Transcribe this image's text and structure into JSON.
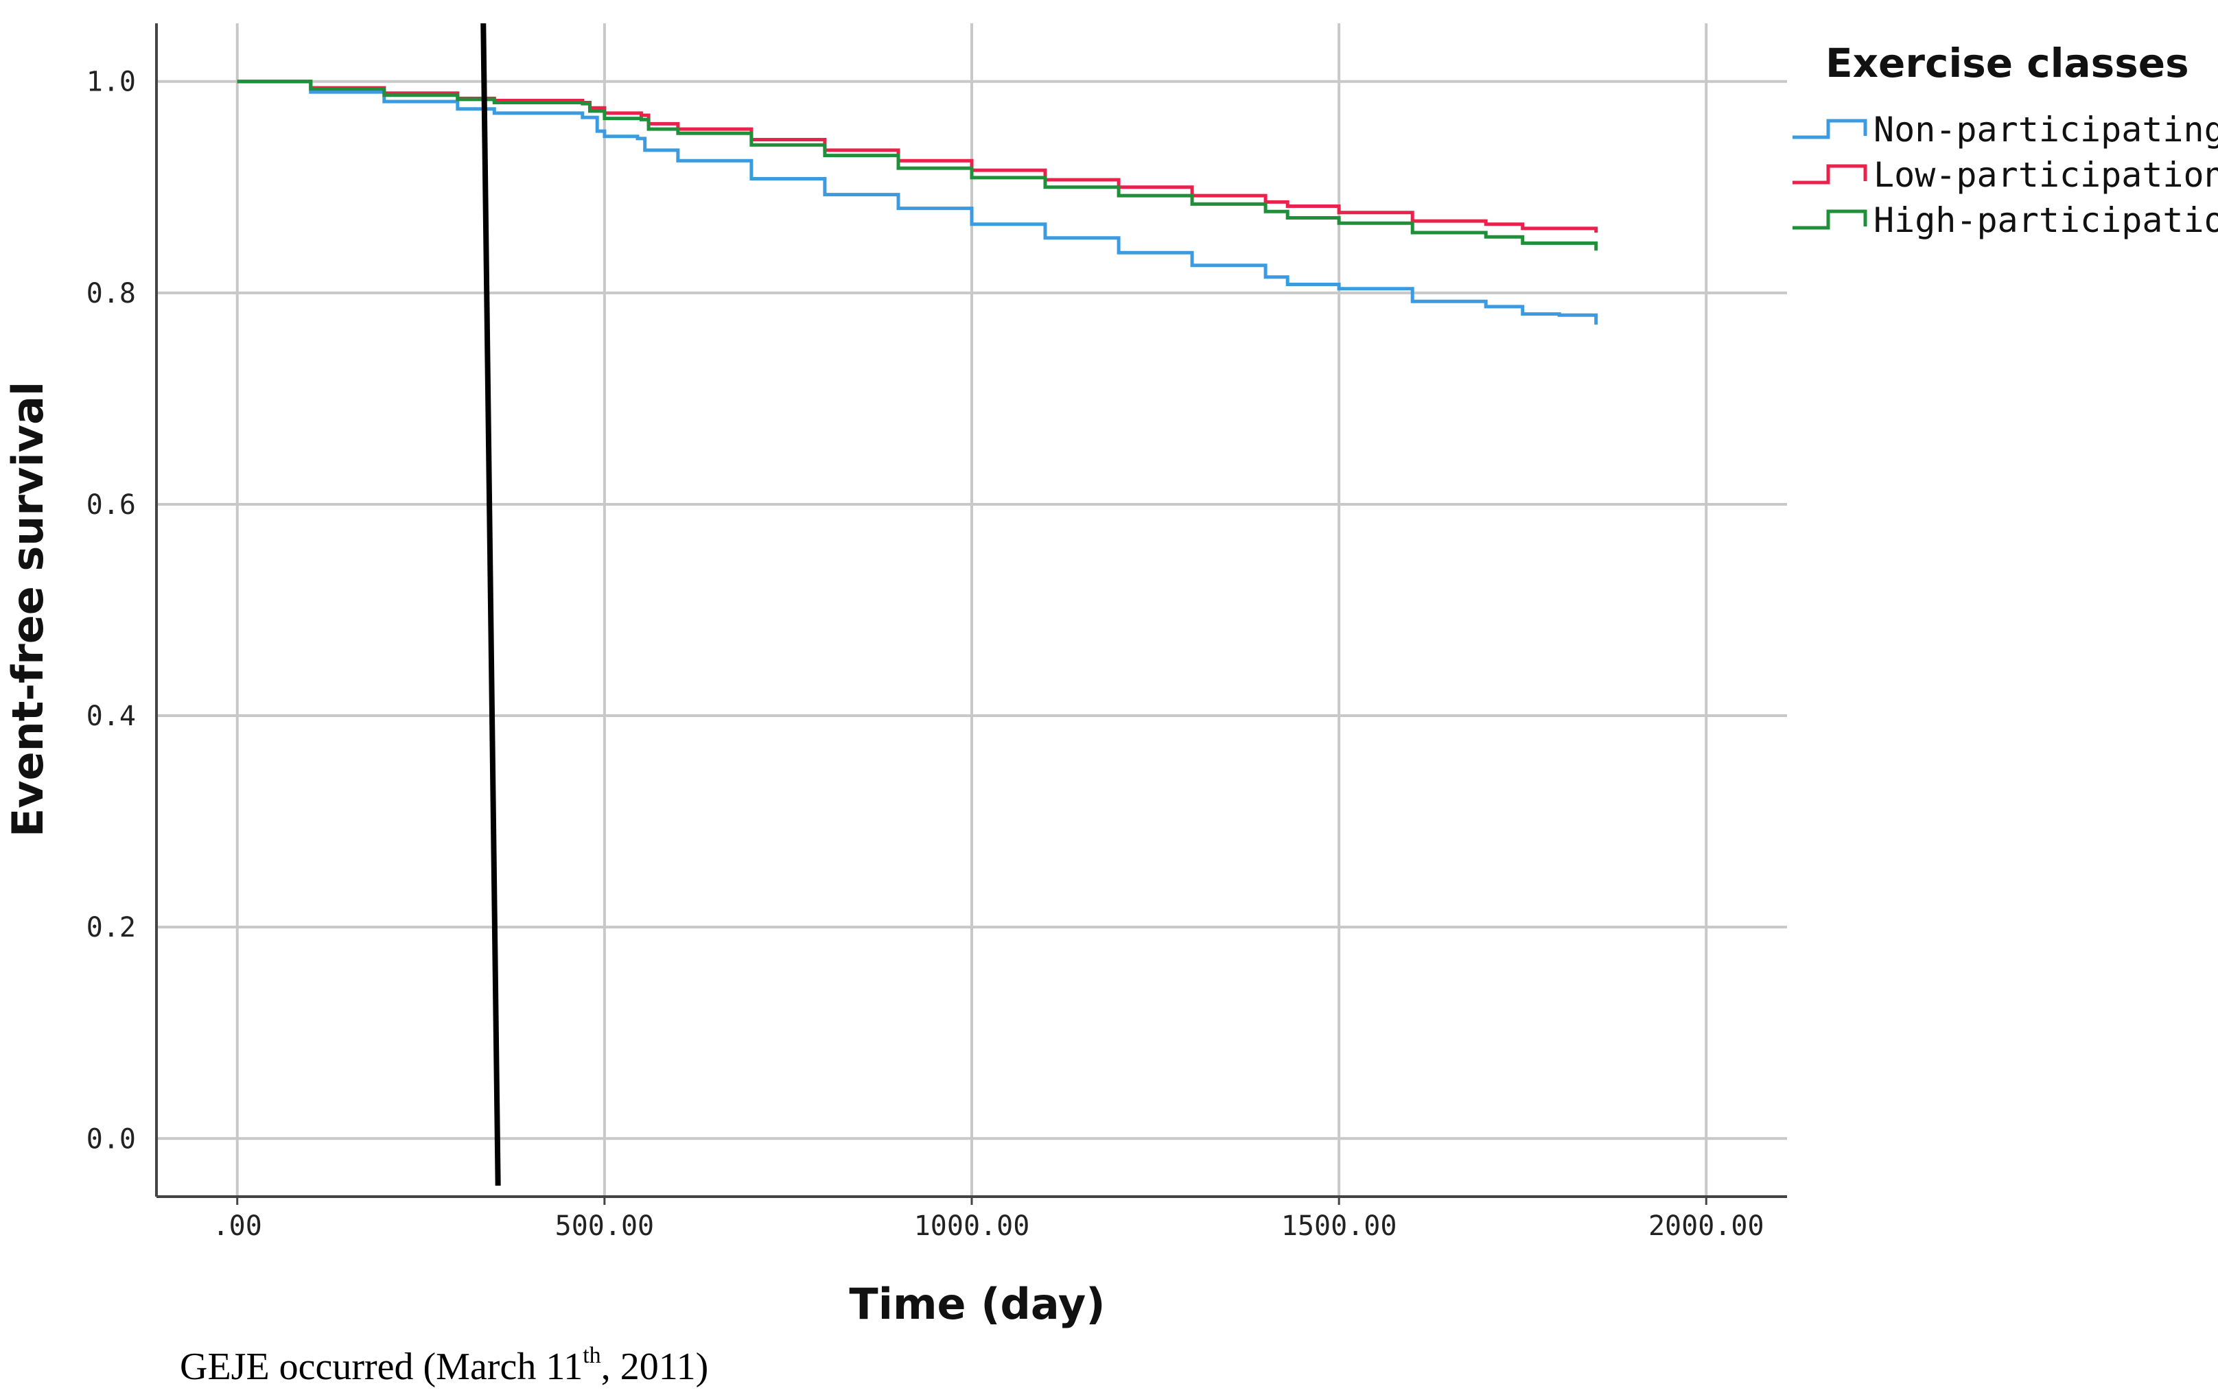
{
  "chart_data": {
    "type": "line",
    "title": "",
    "xlabel": "Time (day)",
    "ylabel": "Event-free survival",
    "xlim": [
      -110,
      2110
    ],
    "ylim": [
      -0.055,
      1.055
    ],
    "x_ticks": [
      0,
      500,
      1000,
      1500,
      2000
    ],
    "x_tick_labels": [
      ".00",
      "500.00",
      "1000.00",
      "1500.00",
      "2000.00"
    ],
    "y_ticks": [
      0.0,
      0.2,
      0.4,
      0.6,
      0.8,
      1.0
    ],
    "y_tick_labels": [
      "0.0",
      "0.2",
      "0.4",
      "0.6",
      "0.8",
      "1.0"
    ],
    "grid": true,
    "legend": {
      "title": "Exercise classes",
      "placement": "top-right, outside plot"
    },
    "series": [
      {
        "name": "Non-participating",
        "color": "#3c9be0",
        "points": [
          [
            0,
            1.0
          ],
          [
            30,
            1.0
          ],
          [
            100,
            0.99
          ],
          [
            200,
            0.981
          ],
          [
            300,
            0.974
          ],
          [
            350,
            0.97
          ],
          [
            470,
            0.966
          ],
          [
            490,
            0.953
          ],
          [
            500,
            0.948
          ],
          [
            545,
            0.946
          ],
          [
            555,
            0.935
          ],
          [
            600,
            0.925
          ],
          [
            700,
            0.908
          ],
          [
            800,
            0.893
          ],
          [
            900,
            0.88
          ],
          [
            1000,
            0.865
          ],
          [
            1100,
            0.852
          ],
          [
            1200,
            0.838
          ],
          [
            1300,
            0.826
          ],
          [
            1400,
            0.815
          ],
          [
            1430,
            0.808
          ],
          [
            1500,
            0.804
          ],
          [
            1600,
            0.792
          ],
          [
            1700,
            0.787
          ],
          [
            1750,
            0.78
          ],
          [
            1800,
            0.779
          ],
          [
            1850,
            0.77
          ]
        ]
      },
      {
        "name": "Low-participation",
        "color": "#e8224a",
        "points": [
          [
            0,
            1.0
          ],
          [
            30,
            1.0
          ],
          [
            100,
            0.994
          ],
          [
            200,
            0.989
          ],
          [
            300,
            0.984
          ],
          [
            350,
            0.982
          ],
          [
            470,
            0.98
          ],
          [
            480,
            0.975
          ],
          [
            500,
            0.97
          ],
          [
            550,
            0.968
          ],
          [
            560,
            0.96
          ],
          [
            600,
            0.955
          ],
          [
            700,
            0.945
          ],
          [
            800,
            0.935
          ],
          [
            900,
            0.925
          ],
          [
            1000,
            0.916
          ],
          [
            1100,
            0.907
          ],
          [
            1200,
            0.9
          ],
          [
            1300,
            0.892
          ],
          [
            1400,
            0.886
          ],
          [
            1430,
            0.882
          ],
          [
            1500,
            0.876
          ],
          [
            1600,
            0.868
          ],
          [
            1700,
            0.865
          ],
          [
            1750,
            0.861
          ],
          [
            1850,
            0.857
          ]
        ]
      },
      {
        "name": "High-participation",
        "color": "#1f8f3a",
        "points": [
          [
            0,
            1.0
          ],
          [
            30,
            1.0
          ],
          [
            100,
            0.993
          ],
          [
            200,
            0.987
          ],
          [
            300,
            0.983
          ],
          [
            350,
            0.98
          ],
          [
            470,
            0.979
          ],
          [
            480,
            0.972
          ],
          [
            500,
            0.965
          ],
          [
            550,
            0.964
          ],
          [
            560,
            0.955
          ],
          [
            600,
            0.951
          ],
          [
            700,
            0.94
          ],
          [
            800,
            0.93
          ],
          [
            900,
            0.918
          ],
          [
            1000,
            0.909
          ],
          [
            1100,
            0.9
          ],
          [
            1200,
            0.892
          ],
          [
            1300,
            0.884
          ],
          [
            1400,
            0.877
          ],
          [
            1430,
            0.871
          ],
          [
            1500,
            0.866
          ],
          [
            1600,
            0.857
          ],
          [
            1700,
            0.853
          ],
          [
            1750,
            0.847
          ],
          [
            1850,
            0.84
          ]
        ]
      }
    ],
    "event_marker": {
      "label_main": "GEJE occurred (March 11",
      "label_sup": "th",
      "label_end": ", 2011)",
      "x_start": 335,
      "x_end": 355,
      "color": "#000000"
    }
  }
}
